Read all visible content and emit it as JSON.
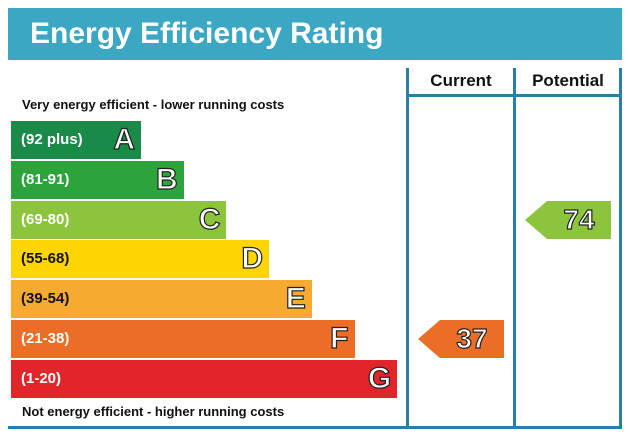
{
  "title": "Energy Efficiency Rating",
  "columns": {
    "current": "Current",
    "potential": "Potential"
  },
  "notes": {
    "top": "Very energy efficient - lower running costs",
    "bottom": "Not energy efficient - higher running costs"
  },
  "colors": {
    "header": "#3ba7c2",
    "frame": "#2a7fa8",
    "A": "#198a47",
    "B": "#2ca33b",
    "C": "#8cc43d",
    "D": "#ffd500",
    "E": "#f6ab30",
    "F": "#ec6d25",
    "G": "#e0262b"
  },
  "chart_data": {
    "type": "bar",
    "title": "Energy Efficiency Rating",
    "categories": [
      "A",
      "B",
      "C",
      "D",
      "E",
      "F",
      "G"
    ],
    "bands": [
      {
        "letter": "A",
        "range": "(92 plus)",
        "min": 92,
        "max": 100
      },
      {
        "letter": "B",
        "range": "(81-91)",
        "min": 81,
        "max": 91
      },
      {
        "letter": "C",
        "range": "(69-80)",
        "min": 69,
        "max": 80
      },
      {
        "letter": "D",
        "range": "(55-68)",
        "min": 55,
        "max": 68
      },
      {
        "letter": "E",
        "range": "(39-54)",
        "min": 39,
        "max": 54
      },
      {
        "letter": "F",
        "range": "(21-38)",
        "min": 21,
        "max": 38
      },
      {
        "letter": "G",
        "range": "(1-20)",
        "min": 1,
        "max": 20
      }
    ],
    "series": [
      {
        "name": "Current",
        "value": 37,
        "band": "F"
      },
      {
        "name": "Potential",
        "value": 74,
        "band": "C"
      }
    ]
  }
}
